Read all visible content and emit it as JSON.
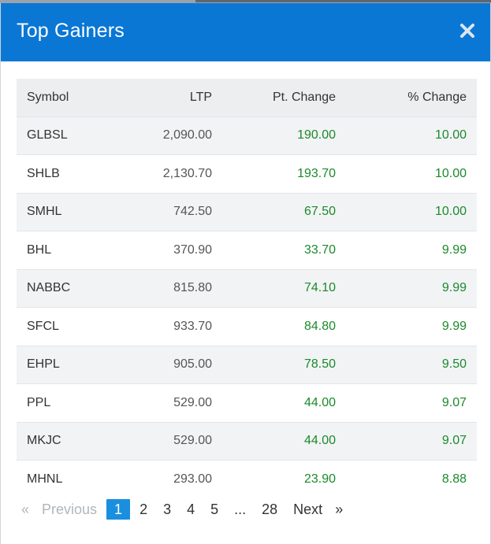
{
  "modal": {
    "title": "Top Gainers",
    "close_icon": "close-icon"
  },
  "table": {
    "headers": {
      "symbol": "Symbol",
      "ltp": "LTP",
      "pt_change": "Pt. Change",
      "pct_change": "% Change"
    },
    "rows": [
      {
        "symbol": "GLBSL",
        "ltp": "2,090.00",
        "pt_change": "190.00",
        "pct_change": "10.00"
      },
      {
        "symbol": "SHLB",
        "ltp": "2,130.70",
        "pt_change": "193.70",
        "pct_change": "10.00"
      },
      {
        "symbol": "SMHL",
        "ltp": "742.50",
        "pt_change": "67.50",
        "pct_change": "10.00"
      },
      {
        "symbol": "BHL",
        "ltp": "370.90",
        "pt_change": "33.70",
        "pct_change": "9.99"
      },
      {
        "symbol": "NABBC",
        "ltp": "815.80",
        "pt_change": "74.10",
        "pct_change": "9.99"
      },
      {
        "symbol": "SFCL",
        "ltp": "933.70",
        "pt_change": "84.80",
        "pct_change": "9.99"
      },
      {
        "symbol": "EHPL",
        "ltp": "905.00",
        "pt_change": "78.50",
        "pct_change": "9.50"
      },
      {
        "symbol": "PPL",
        "ltp": "529.00",
        "pt_change": "44.00",
        "pct_change": "9.07"
      },
      {
        "symbol": "MKJC",
        "ltp": "529.00",
        "pt_change": "44.00",
        "pct_change": "9.07"
      },
      {
        "symbol": "MHNL",
        "ltp": "293.00",
        "pt_change": "23.90",
        "pct_change": "8.88"
      }
    ]
  },
  "pagination": {
    "prev_arrow": "«",
    "prev_label": "Previous",
    "pages": [
      "1",
      "2",
      "3",
      "4",
      "5"
    ],
    "ellipsis": "...",
    "last_page": "28",
    "next_label": "Next",
    "next_arrow": "»",
    "current_page": "1"
  },
  "colors": {
    "header_bg": "#0a77d5",
    "positive": "#1a8a2b",
    "active_page": "#1a8fe0"
  }
}
